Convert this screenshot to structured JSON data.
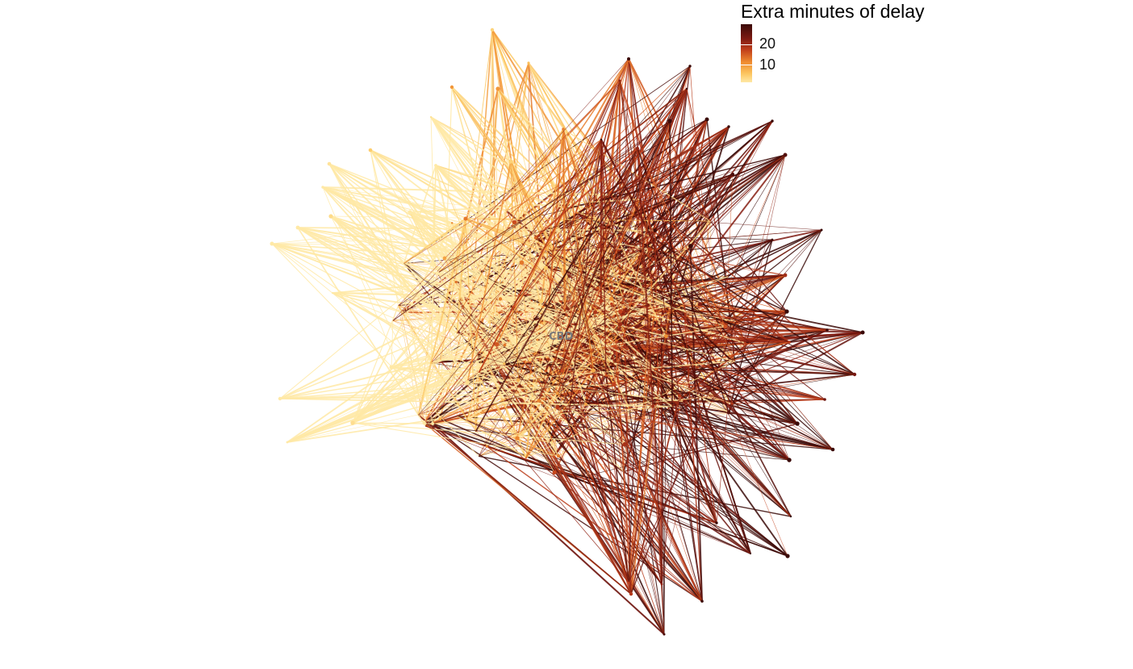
{
  "chart_data": {
    "type": "network",
    "title": "",
    "hub_label": "CBD",
    "legend": {
      "title": "Extra minutes of delay",
      "placement": "top-right",
      "ticks": [
        {
          "value": 20,
          "label": "20"
        },
        {
          "value": 10,
          "label": "10"
        }
      ],
      "range": [
        2,
        26
      ]
    },
    "colors": {
      "low": "#ffe9a6",
      "mid": "#ef8b30",
      "high": "#3a0a08"
    },
    "edges_color_by": "delay"
  }
}
